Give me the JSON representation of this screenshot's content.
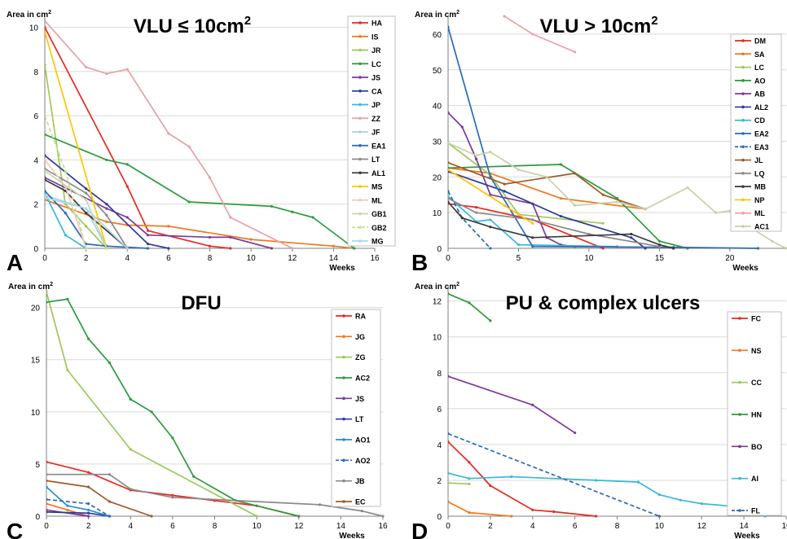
{
  "chart_data": [
    {
      "panel": "A",
      "type": "line",
      "title": "VLU ≤ 10cm",
      "title_sup": "2",
      "ylabel": "Area in cm",
      "ylabel_sup": "2",
      "xlabel": "Weeks",
      "xlim": [
        0,
        16
      ],
      "ylim": [
        0,
        10.5
      ],
      "xticks": [
        0,
        2,
        4,
        6,
        8,
        10,
        12,
        14,
        16
      ],
      "yticks": [
        0,
        2,
        4,
        6,
        8,
        10
      ],
      "grid": "horizontal",
      "legend_position": "right",
      "series": [
        {
          "name": "HA",
          "color": "#e8281e",
          "x": [
            0,
            4,
            5,
            8,
            9
          ],
          "y": [
            10,
            2.8,
            0.8,
            0.1,
            0
          ]
        },
        {
          "name": "IS",
          "color": "#f07820",
          "x": [
            0,
            3,
            4,
            6,
            10,
            14,
            15
          ],
          "y": [
            2.2,
            1.2,
            1.05,
            1.0,
            0.4,
            0.1,
            0
          ]
        },
        {
          "name": "JR",
          "color": "#9dc85a",
          "x": [
            0,
            1,
            2,
            3
          ],
          "y": [
            8.3,
            2.0,
            1.0,
            0
          ]
        },
        {
          "name": "LC",
          "color": "#2e9a3c",
          "x": [
            0,
            3,
            4,
            7,
            11,
            12,
            13,
            15
          ],
          "y": [
            5.15,
            4.0,
            3.8,
            2.1,
            1.9,
            1.65,
            1.4,
            0
          ]
        },
        {
          "name": "JS",
          "color": "#7a3a9a",
          "x": [
            0,
            3,
            4,
            5,
            8,
            9,
            11
          ],
          "y": [
            3.2,
            1.8,
            1.4,
            0.6,
            0.5,
            0.5,
            0
          ]
        },
        {
          "name": "CA",
          "color": "#2e3a9a",
          "x": [
            0,
            2,
            3,
            5,
            6
          ],
          "y": [
            4.2,
            2.7,
            2.0,
            0.2,
            0
          ]
        },
        {
          "name": "JP",
          "color": "#3ab8d8",
          "x": [
            0,
            1,
            2
          ],
          "y": [
            2.5,
            0.6,
            0
          ]
        },
        {
          "name": "ZZ",
          "color": "#e8a0a8",
          "x": [
            0,
            2,
            3,
            4,
            6,
            7,
            8,
            9,
            12
          ],
          "y": [
            10.3,
            8.2,
            7.9,
            8.1,
            5.2,
            4.6,
            3.2,
            1.4,
            0
          ]
        },
        {
          "name": "JF",
          "color": "#a8d0e8",
          "x": [
            0,
            2,
            3
          ],
          "y": [
            2.4,
            1.8,
            0
          ]
        },
        {
          "name": "EA1",
          "color": "#2a6ab8",
          "x": [
            0,
            1,
            2,
            3,
            5
          ],
          "y": [
            2.6,
            1.6,
            0.2,
            0.1,
            0
          ]
        },
        {
          "name": "LT",
          "color": "#8a8a8a",
          "x": [
            0,
            2,
            3,
            4
          ],
          "y": [
            3.6,
            2.5,
            1.5,
            0
          ]
        },
        {
          "name": "AL1",
          "color": "#3a3a3a",
          "x": [
            0,
            1,
            2,
            4
          ],
          "y": [
            3.1,
            2.6,
            1.6,
            0
          ]
        },
        {
          "name": "MS",
          "color": "#ffc400",
          "x": [
            0,
            3
          ],
          "y": [
            9.8,
            0
          ]
        },
        {
          "name": "ML",
          "color": "#f0c8c8",
          "x": [
            0,
            1,
            2
          ],
          "y": [
            4.0,
            2.8,
            0
          ]
        },
        {
          "name": "GB1",
          "color": "#c8d8a8",
          "x": [
            0,
            2,
            3
          ],
          "y": [
            3.5,
            2.2,
            0
          ]
        },
        {
          "name": "GB2",
          "color": "#c8e090",
          "dashed": true,
          "x": [
            0,
            1,
            2
          ],
          "y": [
            6.0,
            3.5,
            0
          ]
        },
        {
          "name": "MG",
          "color": "#a8d8f0",
          "x": [
            0,
            2,
            4
          ],
          "y": [
            2.3,
            1.8,
            0
          ]
        }
      ]
    },
    {
      "panel": "B",
      "type": "line",
      "title": "VLU > 10cm",
      "title_sup": "2",
      "ylabel": "Area in cm",
      "ylabel_sup": "2",
      "xlabel": "Weeks",
      "xlim": [
        0,
        24
      ],
      "ylim": [
        0,
        65
      ],
      "xticks": [
        0,
        5,
        10,
        15,
        20
      ],
      "yticks": [
        0,
        10,
        20,
        30,
        40,
        50,
        60
      ],
      "grid": "horizontal",
      "legend_position": "right",
      "series": [
        {
          "name": "DM",
          "color": "#e8281e",
          "x": [
            0,
            2,
            6,
            11
          ],
          "y": [
            12.5,
            11.5,
            8.0,
            0
          ]
        },
        {
          "name": "SA",
          "color": "#f07820",
          "x": [
            0,
            3,
            8,
            14
          ],
          "y": [
            22.5,
            21.0,
            14.0,
            11.0
          ]
        },
        {
          "name": "LC",
          "color": "#9dc85a",
          "x": [
            0,
            3,
            5,
            11
          ],
          "y": [
            29.5,
            20.5,
            9.5,
            7.0
          ]
        },
        {
          "name": "AO",
          "color": "#2e9a3c",
          "x": [
            0,
            8,
            12,
            15,
            17
          ],
          "y": [
            22.5,
            23.5,
            14.0,
            2.0,
            0
          ]
        },
        {
          "name": "AB",
          "color": "#7a3a9a",
          "x": [
            0,
            1,
            2,
            3,
            6,
            7,
            8,
            9
          ],
          "y": [
            38.0,
            34.0,
            25.0,
            15.0,
            12.5,
            3.0,
            1.0,
            0.5
          ]
        },
        {
          "name": "AL2",
          "color": "#2e3a9a",
          "x": [
            0,
            4,
            8,
            13,
            14
          ],
          "y": [
            21.5,
            16.0,
            9.0,
            3.0,
            0
          ]
        },
        {
          "name": "CD",
          "color": "#3ab8d8",
          "x": [
            0,
            2,
            3,
            5,
            12
          ],
          "y": [
            14.5,
            7.5,
            8.0,
            1.0,
            0.5
          ]
        },
        {
          "name": "EA2",
          "color": "#2a6ab8",
          "x": [
            0,
            3,
            6,
            16,
            22
          ],
          "y": [
            62.0,
            20.0,
            0.5,
            0.3,
            0
          ]
        },
        {
          "name": "EA3",
          "color": "#2a6ab8",
          "dashed": true,
          "x": [
            0,
            1,
            3
          ],
          "y": [
            16.0,
            8.5,
            0
          ]
        },
        {
          "name": "JL",
          "color": "#a05a28",
          "x": [
            0,
            4,
            9,
            11,
            14
          ],
          "y": [
            24.0,
            18.0,
            21.0,
            15.0,
            11.0
          ]
        },
        {
          "name": "LQ",
          "color": "#8a8a8a",
          "x": [
            0,
            2,
            6,
            10,
            15
          ],
          "y": [
            14.0,
            10.0,
            8.0,
            4.0,
            0.5
          ]
        },
        {
          "name": "MB",
          "color": "#3a3a3a",
          "x": [
            0,
            1,
            3,
            6,
            13,
            15,
            16
          ],
          "y": [
            13.0,
            8.5,
            6.0,
            3.0,
            4.0,
            1.0,
            0
          ]
        },
        {
          "name": "NP",
          "color": "#ffc400",
          "x": [
            0,
            4,
            6
          ],
          "y": [
            22.0,
            12.0,
            7.0
          ]
        },
        {
          "name": "ML",
          "color": "#f0a0a8",
          "x": [
            4,
            6,
            9
          ],
          "y": [
            65.0,
            60.0,
            55.0
          ]
        },
        {
          "name": "AC1",
          "color": "#c8d0a8",
          "x": [
            0,
            2,
            3,
            5,
            7,
            9,
            12,
            14,
            17,
            19,
            20,
            21,
            23,
            24
          ],
          "y": [
            29.5,
            26.0,
            27.0,
            22.0,
            20.0,
            12.0,
            13.0,
            11.0,
            17.0,
            10.0,
            10.5,
            7.0,
            2.0,
            0
          ]
        }
      ]
    },
    {
      "panel": "C",
      "type": "line",
      "title": "DFU",
      "ylabel": "Area in cm",
      "ylabel_sup": "2",
      "xlabel": "Weeks",
      "xlim": [
        0,
        16
      ],
      "ylim": [
        0,
        22
      ],
      "xticks": [
        0,
        2,
        4,
        6,
        8,
        10,
        12,
        14,
        16
      ],
      "yticks": [
        0,
        5,
        10,
        15,
        20
      ],
      "grid": "horizontal",
      "legend_position": "right",
      "series": [
        {
          "name": "RA",
          "color": "#e8281e",
          "x": [
            0,
            2,
            4,
            6,
            8,
            10,
            12
          ],
          "y": [
            5.2,
            4.2,
            2.5,
            2.0,
            1.5,
            1.0,
            0
          ]
        },
        {
          "name": "JG",
          "color": "#f07820",
          "x": [
            0,
            1,
            2
          ],
          "y": [
            1.2,
            0.6,
            0
          ]
        },
        {
          "name": "ZG",
          "color": "#9dc85a",
          "x": [
            0,
            1,
            4,
            10
          ],
          "y": [
            21.5,
            14.0,
            6.4,
            0
          ]
        },
        {
          "name": "AC2",
          "color": "#2e9a3c",
          "x": [
            0,
            1,
            2,
            3,
            4,
            5,
            6,
            7,
            9,
            12
          ],
          "y": [
            20.5,
            20.8,
            17.0,
            14.7,
            11.2,
            10.0,
            7.5,
            3.8,
            1.5,
            0
          ]
        },
        {
          "name": "JS",
          "color": "#7a3a9a",
          "x": [
            0,
            2
          ],
          "y": [
            0.6,
            0
          ]
        },
        {
          "name": "LT",
          "color": "#2e3a9a",
          "x": [
            0,
            2,
            3
          ],
          "y": [
            0.4,
            0.3,
            0
          ]
        },
        {
          "name": "AO1",
          "color": "#2a8ad8",
          "x": [
            0,
            1,
            2,
            3
          ],
          "y": [
            2.8,
            1.0,
            0.6,
            0
          ]
        },
        {
          "name": "AO2",
          "color": "#2a6ab8",
          "dashed": true,
          "x": [
            0,
            2,
            3
          ],
          "y": [
            1.6,
            1.2,
            0
          ]
        },
        {
          "name": "JB",
          "color": "#8a8a8a",
          "x": [
            0,
            3,
            4,
            6,
            13,
            15,
            16
          ],
          "y": [
            4.0,
            4.0,
            2.6,
            1.8,
            1.1,
            0.5,
            0
          ]
        },
        {
          "name": "EC",
          "color": "#a05a28",
          "x": [
            0,
            2,
            3,
            5
          ],
          "y": [
            3.4,
            2.8,
            1.4,
            0
          ]
        }
      ]
    },
    {
      "panel": "D",
      "type": "line",
      "title": "PU & complex ulcers",
      "ylabel": "Area in cm",
      "ylabel_sup": "2",
      "xlabel": "Weeks",
      "xlim": [
        0,
        16
      ],
      "ylim": [
        0,
        12.8
      ],
      "xticks": [
        0,
        2,
        4,
        6,
        8,
        10,
        12,
        14,
        16
      ],
      "xtick_labels": [
        "0",
        "2",
        "4",
        "6",
        "8",
        "10",
        "12",
        "14",
        "16"
      ],
      "yticks": [
        0,
        2,
        4,
        6,
        8,
        10,
        12
      ],
      "grid": "horizontal",
      "legend_position": "right",
      "series": [
        {
          "name": "FC",
          "color": "#e8281e",
          "x": [
            0,
            1,
            2,
            4,
            5,
            7
          ],
          "y": [
            4.15,
            3.0,
            1.7,
            0.35,
            0.25,
            0
          ]
        },
        {
          "name": "NS",
          "color": "#f07820",
          "x": [
            0,
            1,
            3
          ],
          "y": [
            0.8,
            0.2,
            0
          ]
        },
        {
          "name": "CC",
          "color": "#9dc85a",
          "x": [
            0,
            1
          ],
          "y": [
            1.85,
            1.8
          ]
        },
        {
          "name": "HN",
          "color": "#2e9a3c",
          "x": [
            0,
            1,
            2
          ],
          "y": [
            12.4,
            11.9,
            10.9
          ]
        },
        {
          "name": "BO",
          "color": "#7a3a9a",
          "x": [
            0,
            4,
            6
          ],
          "y": [
            7.8,
            6.2,
            4.65
          ]
        },
        {
          "name": "AI",
          "color": "#3ab8d8",
          "x": [
            0,
            1,
            3,
            7,
            9,
            10,
            11,
            12,
            14,
            15
          ],
          "y": [
            2.4,
            2.1,
            2.2,
            2.0,
            1.9,
            1.2,
            0.9,
            0.7,
            0.5,
            0
          ]
        },
        {
          "name": "FL",
          "color": "#2a6ab8",
          "dashed": true,
          "x": [
            0,
            10
          ],
          "y": [
            4.6,
            0
          ]
        }
      ]
    }
  ],
  "panel_letters": [
    "A",
    "B",
    "C",
    "D"
  ]
}
